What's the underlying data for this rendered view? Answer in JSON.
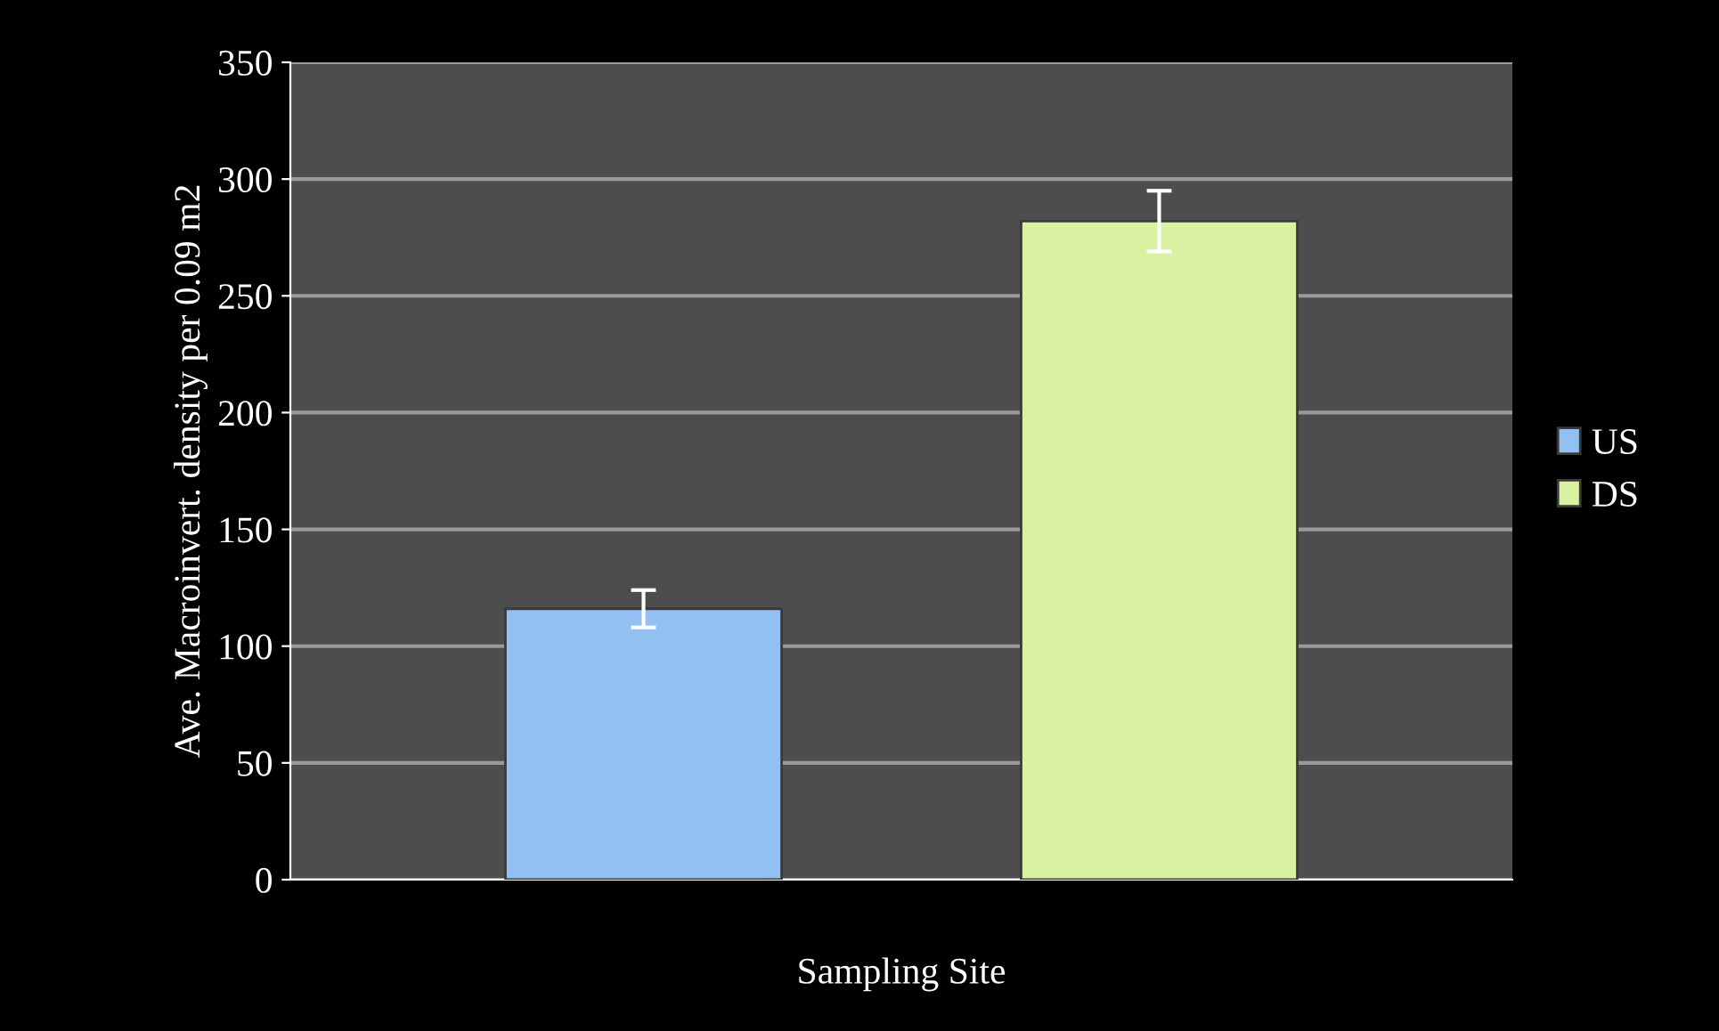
{
  "chart_data": {
    "type": "bar",
    "xlabel": "Sampling Site",
    "ylabel": "Ave. Macroinvert. density per 0.09 m2",
    "categories": [
      null
    ],
    "series": [
      {
        "name": "US",
        "color": "#93c0f2",
        "values": [
          116
        ],
        "errors": [
          8
        ]
      },
      {
        "name": "DS",
        "color": "#d9f2a2",
        "values": [
          282
        ],
        "errors": [
          13
        ]
      }
    ],
    "ylim": [
      0,
      350
    ],
    "yticks": [
      0,
      50,
      100,
      150,
      200,
      250,
      300,
      350
    ],
    "grid": "y",
    "legend": "right"
  }
}
